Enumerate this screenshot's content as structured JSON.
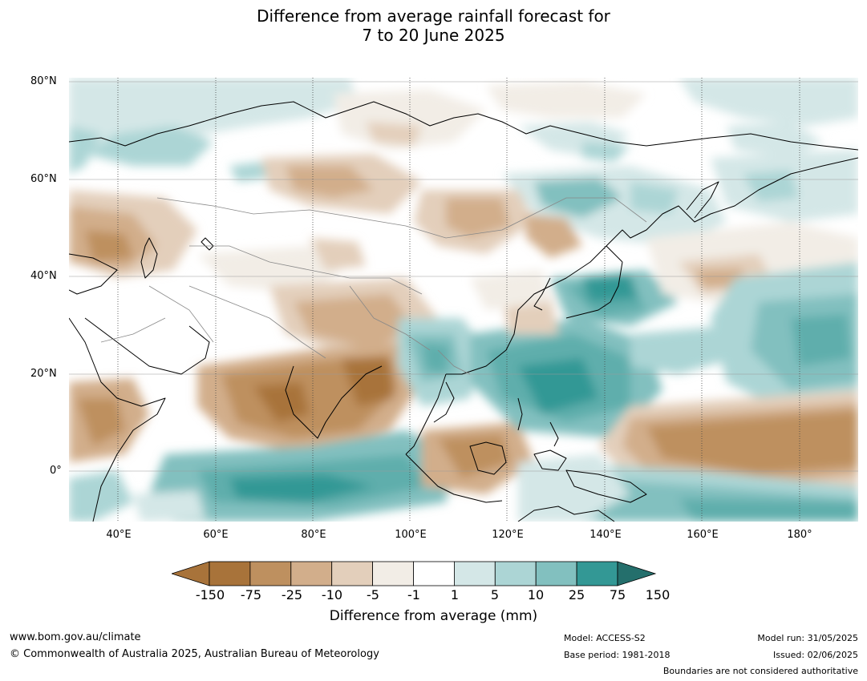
{
  "title": {
    "line1": "Difference from average rainfall forecast for",
    "line2": "7 to 20 June 2025"
  },
  "map": {
    "lat_labels": [
      "80°N",
      "60°N",
      "40°N",
      "20°N",
      "0°"
    ],
    "lon_labels": [
      "40°E",
      "60°E",
      "80°E",
      "100°E",
      "120°E",
      "140°E",
      "160°E",
      "180°"
    ],
    "region": "Asia and western Pacific",
    "extent": {
      "lon": [
        30,
        192
      ],
      "lat": [
        -10,
        81
      ]
    }
  },
  "colorbar": {
    "title": "Difference from average (mm)",
    "labels": [
      "-150",
      "-75",
      "-25",
      "-10",
      "-5",
      "-1",
      "1",
      "5",
      "10",
      "25",
      "75",
      "150"
    ],
    "colors": [
      "#a8733a",
      "#be905f",
      "#d2ae8b",
      "#e3cfbb",
      "#f2ede6",
      "#ffffff",
      "#d4e7e7",
      "#acd5d5",
      "#82c0bf",
      "#5eaeac",
      "#339895",
      "#246f6c"
    ]
  },
  "footer": {
    "url": "www.bom.gov.au/climate",
    "copyright": "© Commonwealth of Australia 2025, Australian Bureau of Meteorology",
    "model": "Model: ACCESS-S2",
    "base_period": "Base period: 1981-2018",
    "model_run": "Model run: 31/05/2025",
    "issued": "Issued: 02/06/2025",
    "disclaimer": "Boundaries are not considered authoritative"
  }
}
